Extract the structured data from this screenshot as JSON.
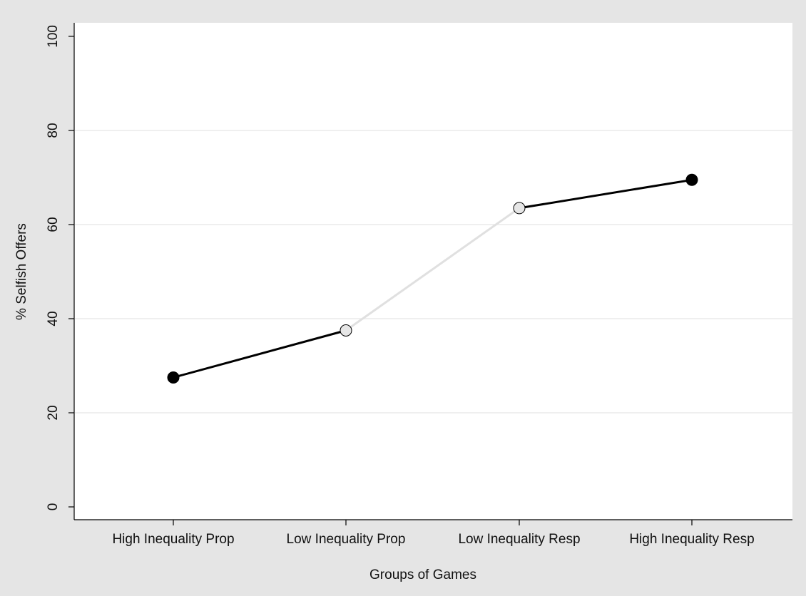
{
  "chart_data": {
    "type": "line",
    "title": "",
    "xlabel": "Groups of Games",
    "ylabel": "% Selfish Offers",
    "categories": [
      "High Inequality Prop",
      "Low Inequality Prop",
      "Low Inequality Resp",
      "High Inequality Resp"
    ],
    "values": [
      27.5,
      37.5,
      63.5,
      69.5
    ],
    "marker_fill": [
      "#000000",
      "#e6e6e6",
      "#e6e6e6",
      "#000000"
    ],
    "segment_color": [
      "#000000",
      "#e0e0e0",
      "#000000"
    ],
    "ylim": [
      0,
      100
    ],
    "yticks": [
      0,
      20,
      40,
      60,
      80,
      100
    ],
    "grid": true,
    "grid_color": "#eaeaea",
    "plot_background": "#ffffff",
    "page_background": "#e5e5e5"
  }
}
